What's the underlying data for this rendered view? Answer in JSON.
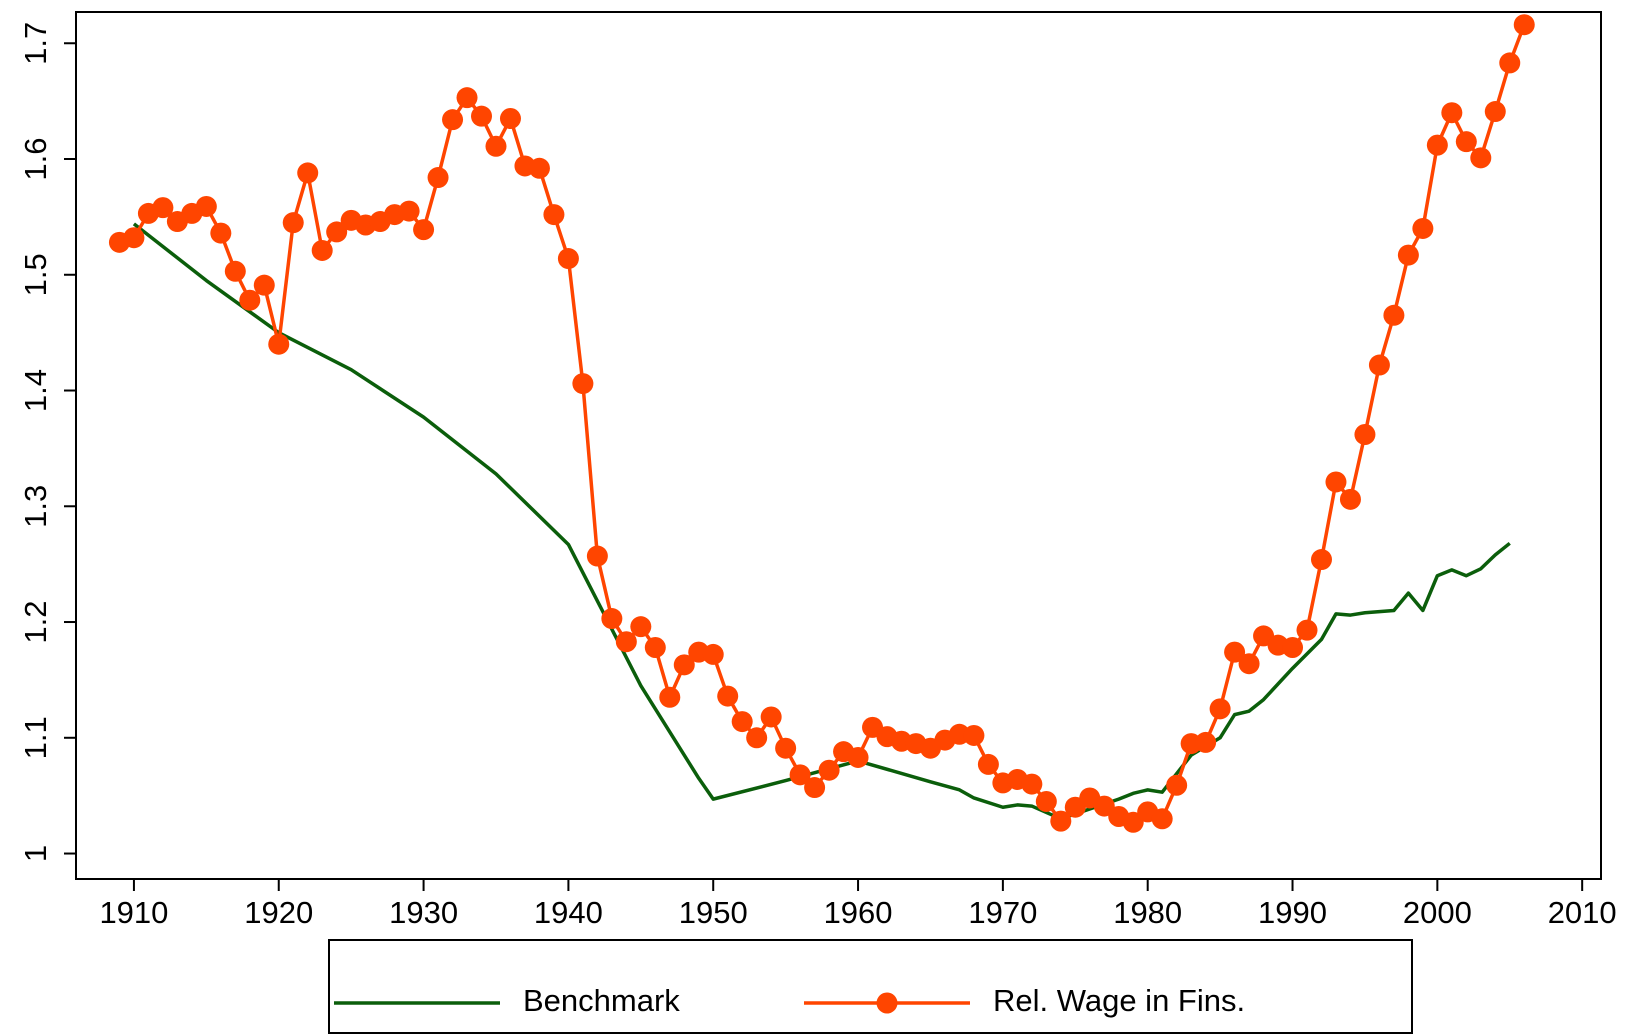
{
  "chart_data": {
    "type": "line",
    "xlim": [
      1906,
      2011.3
    ],
    "ylim": [
      0.978,
      1.727
    ],
    "xticks": [
      1910,
      1920,
      1930,
      1940,
      1950,
      1960,
      1970,
      1980,
      1990,
      2000,
      2010
    ],
    "yticks": [
      1,
      1.1,
      1.2,
      1.3,
      1.4,
      1.5,
      1.6,
      1.7
    ],
    "legend": "bottom",
    "series": [
      {
        "name": "Benchmark",
        "color": "#0b5e0b",
        "markers": false,
        "x": [
          1910,
          1915,
          1920,
          1925,
          1930,
          1935,
          1940,
          1945,
          1949,
          1950,
          1955,
          1960,
          1965,
          1967,
          1968,
          1970,
          1971,
          1972,
          1974,
          1978,
          1979,
          1980,
          1981,
          1983,
          1985,
          1986,
          1987,
          1988,
          1990,
          1992,
          1993,
          1994,
          1995,
          1997,
          1998,
          1999,
          2000,
          2001,
          2002,
          2003,
          2004,
          2005
        ],
        "values": [
          1.544,
          1.495,
          1.45,
          1.418,
          1.377,
          1.328,
          1.267,
          1.145,
          1.065,
          1.047,
          1.063,
          1.08,
          1.062,
          1.055,
          1.048,
          1.04,
          1.042,
          1.041,
          1.03,
          1.047,
          1.052,
          1.055,
          1.053,
          1.085,
          1.1,
          1.12,
          1.123,
          1.133,
          1.16,
          1.185,
          1.207,
          1.206,
          1.208,
          1.21,
          1.225,
          1.21,
          1.24,
          1.245,
          1.24,
          1.246,
          1.258,
          1.268
        ]
      },
      {
        "name": "Rel. Wage in Fins.",
        "color": "#ff4500",
        "markers": true,
        "x": [
          1909,
          1910,
          1911,
          1912,
          1913,
          1914,
          1915,
          1916,
          1917,
          1918,
          1919,
          1920,
          1921,
          1922,
          1923,
          1924,
          1925,
          1926,
          1927,
          1928,
          1929,
          1930,
          1931,
          1932,
          1933,
          1934,
          1935,
          1936,
          1937,
          1938,
          1939,
          1940,
          1941,
          1942,
          1943,
          1944,
          1945,
          1946,
          1947,
          1948,
          1949,
          1950,
          1951,
          1952,
          1953,
          1954,
          1955,
          1956,
          1957,
          1958,
          1959,
          1960,
          1961,
          1962,
          1963,
          1964,
          1965,
          1966,
          1967,
          1968,
          1969,
          1970,
          1971,
          1972,
          1973,
          1974,
          1975,
          1976,
          1977,
          1978,
          1979,
          1980,
          1981,
          1982,
          1983,
          1984,
          1985,
          1986,
          1987,
          1988,
          1989,
          1990,
          1991,
          1992,
          1993,
          1994,
          1995,
          1996,
          1997,
          1998,
          1999,
          2000,
          2001,
          2002,
          2003,
          2004,
          2005,
          2006
        ],
        "values": [
          1.528,
          1.532,
          1.553,
          1.558,
          1.546,
          1.553,
          1.559,
          1.536,
          1.503,
          1.478,
          1.491,
          1.44,
          1.545,
          1.588,
          1.521,
          1.537,
          1.547,
          1.543,
          1.546,
          1.552,
          1.555,
          1.539,
          1.584,
          1.634,
          1.653,
          1.637,
          1.611,
          1.635,
          1.594,
          1.592,
          1.552,
          1.514,
          1.406,
          1.257,
          1.203,
          1.183,
          1.196,
          1.178,
          1.135,
          1.163,
          1.174,
          1.172,
          1.136,
          1.114,
          1.1,
          1.118,
          1.091,
          1.068,
          1.057,
          1.072,
          1.088,
          1.083,
          1.109,
          1.101,
          1.097,
          1.095,
          1.091,
          1.098,
          1.103,
          1.102,
          1.077,
          1.061,
          1.064,
          1.06,
          1.045,
          1.028,
          1.04,
          1.048,
          1.041,
          1.032,
          1.027,
          1.036,
          1.03,
          1.059,
          1.095,
          1.096,
          1.125,
          1.174,
          1.164,
          1.188,
          1.18,
          1.178,
          1.193,
          1.254,
          1.321,
          1.306,
          1.362,
          1.422,
          1.465,
          1.517,
          1.54,
          1.612,
          1.64,
          1.615,
          1.601,
          1.641,
          1.683,
          1.716
        ]
      }
    ]
  }
}
